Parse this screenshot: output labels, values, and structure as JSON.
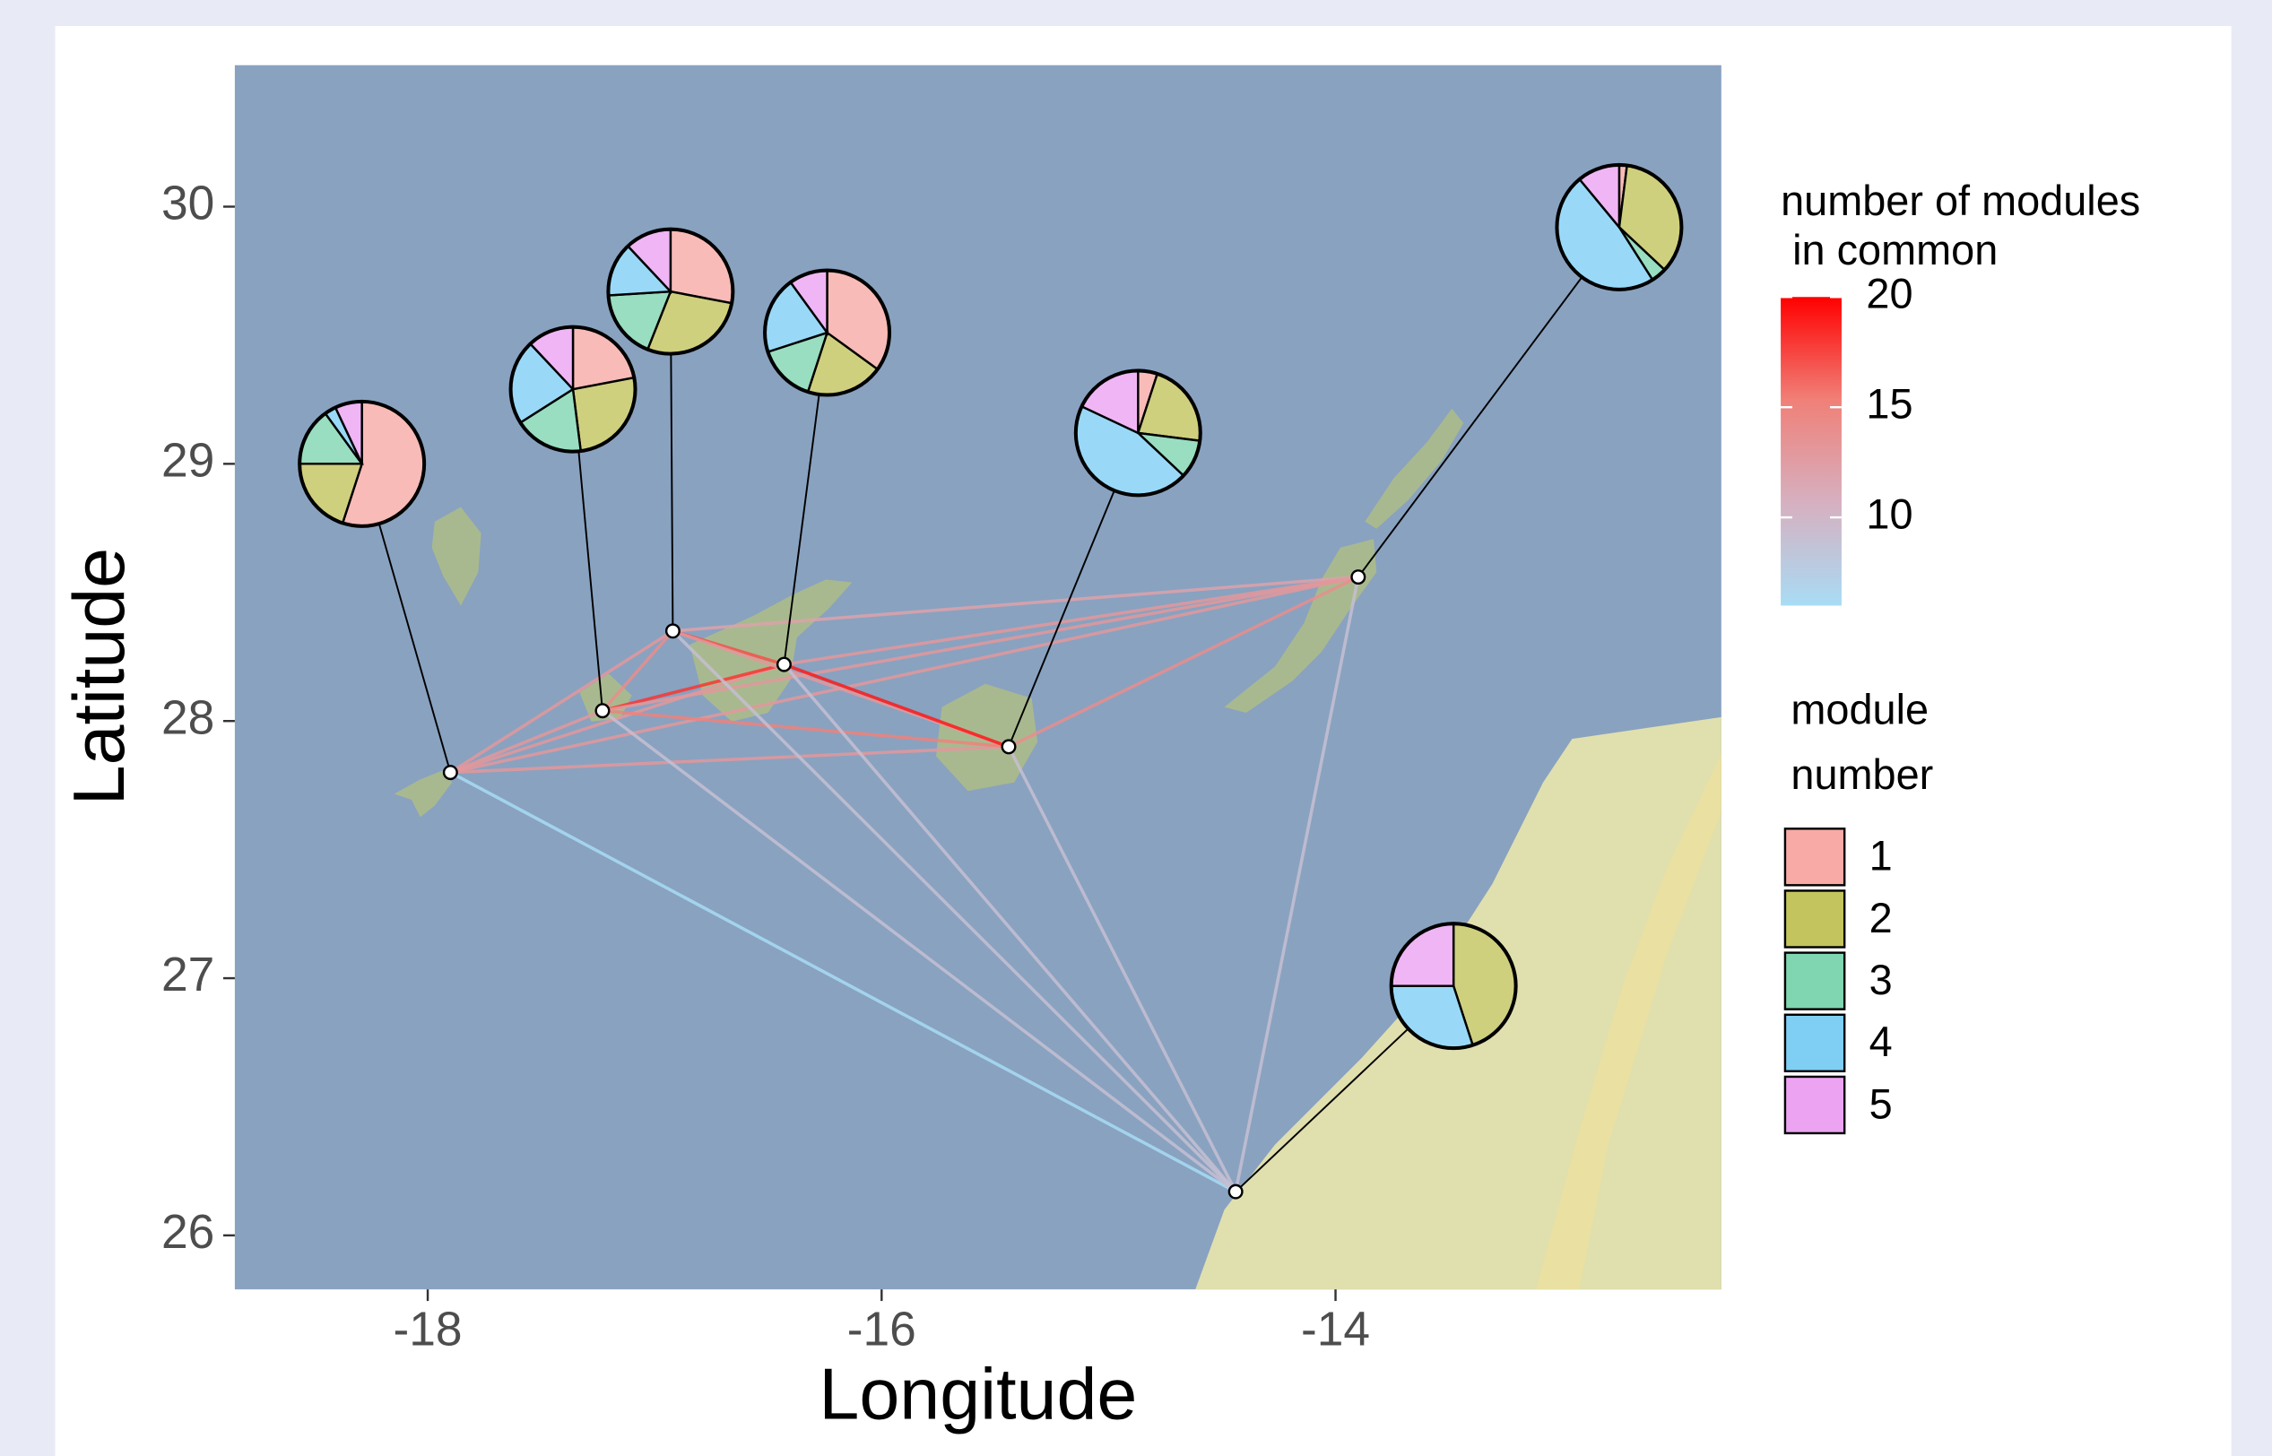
{
  "chart_data": {
    "type": "map-network",
    "xlabel": "Longitude",
    "ylabel": "Latitude",
    "xlim": [
      -18.85,
      -12.3
    ],
    "ylim": [
      25.79,
      30.55
    ],
    "xticks": [
      -18,
      -16,
      -14
    ],
    "yticks": [
      26,
      27,
      28,
      29,
      30
    ],
    "sites": [
      {
        "lon": -17.9,
        "lat": 27.8,
        "pie_lon": -18.29,
        "pie_lat": 29.0,
        "values": [
          55,
          20,
          15,
          3,
          7
        ]
      },
      {
        "lon": -17.23,
        "lat": 28.04,
        "pie_lon": -17.36,
        "pie_lat": 29.29,
        "values": [
          22,
          26,
          18,
          22,
          12
        ]
      },
      {
        "lon": -16.92,
        "lat": 28.35,
        "pie_lon": -16.93,
        "pie_lat": 29.67,
        "values": [
          28,
          28,
          18,
          14,
          12
        ]
      },
      {
        "lon": -16.43,
        "lat": 28.22,
        "pie_lon": -16.24,
        "pie_lat": 29.51,
        "values": [
          35,
          20,
          15,
          20,
          10
        ]
      },
      {
        "lon": -15.44,
        "lat": 27.9,
        "pie_lon": -14.87,
        "pie_lat": 29.12,
        "values": [
          5,
          22,
          10,
          45,
          18
        ]
      },
      {
        "lon": -13.9,
        "lat": 28.56,
        "pie_lon": -12.75,
        "pie_lat": 29.92,
        "values": [
          2,
          35,
          4,
          48,
          11
        ]
      },
      {
        "lon": -14.44,
        "lat": 26.17,
        "pie_lon": -13.48,
        "pie_lat": 26.97,
        "values": [
          0,
          45,
          0,
          30,
          25
        ]
      }
    ],
    "edges": {
      "from": [
        0,
        0,
        0,
        0,
        0,
        0,
        1,
        1,
        1,
        1,
        1,
        2,
        2,
        2,
        2,
        3,
        3,
        3,
        4,
        4,
        5
      ],
      "to": [
        1,
        2,
        3,
        4,
        5,
        6,
        2,
        3,
        4,
        5,
        6,
        3,
        4,
        5,
        6,
        4,
        5,
        6,
        5,
        6,
        6
      ],
      "values": [
        13,
        13,
        13,
        13,
        13,
        6,
        14,
        18,
        15,
        13,
        9,
        17,
        13,
        12,
        9,
        19,
        13,
        9,
        14,
        9,
        9
      ]
    },
    "colorbar": {
      "title": [
        "number of modules",
        " in common"
      ],
      "lim": [
        6,
        20
      ],
      "ticks": [
        10,
        15,
        20
      ],
      "colors": [
        "#a8dcf5",
        "#d6b0c0",
        "#f08078",
        "#ff0000"
      ]
    },
    "modules": {
      "title": [
        "module",
        "number"
      ],
      "categories": [
        "1",
        "2",
        "3",
        "4",
        "5"
      ],
      "colors": [
        "#f7aaa6",
        "#c3c45e",
        "#7fd6b0",
        "#7fcff5",
        "#eca3f2"
      ]
    }
  }
}
